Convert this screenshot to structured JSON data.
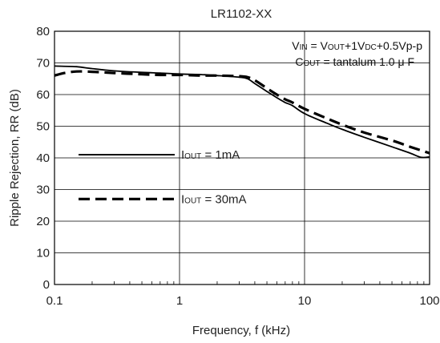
{
  "chart_data": {
    "type": "line",
    "title": "LR1102-XX",
    "xlabel": "Frequency, f (kHz)",
    "ylabel": "Ripple Rejection, RR (dB)",
    "xscale": "log",
    "xlim": [
      0.1,
      100
    ],
    "ylim": [
      0,
      80
    ],
    "xticks": [
      "0.1",
      "1",
      "10",
      "100"
    ],
    "yticks": [
      "0",
      "10",
      "20",
      "30",
      "40",
      "50",
      "60",
      "70",
      "80"
    ],
    "grid": true,
    "conditions": {
      "line1": {
        "a": "V",
        "a_sub": "IN",
        "b": " = V",
        "b_sub": "OUT",
        "c": "+1V",
        "c_sub": "DC",
        "d": "+0.5Vp-p"
      },
      "line2": {
        "a": "C",
        "a_sub": "OUT",
        "b": " = tantalum 1.0 μ F"
      }
    },
    "series": [
      {
        "name": "IOUT = 1mA",
        "label": {
          "a": "I",
          "a_sub": "OUT",
          "b": " = 1mA"
        },
        "style": "solid",
        "x": [
          0.1,
          0.15,
          0.2,
          0.3,
          0.5,
          0.7,
          1,
          1.5,
          2,
          3,
          3.5,
          4,
          5,
          6,
          7,
          8,
          10,
          15,
          20,
          30,
          50,
          70,
          85,
          100
        ],
        "y": [
          69,
          68.8,
          68.2,
          67.5,
          67,
          66.8,
          66.5,
          66.3,
          66,
          65.5,
          65,
          63.5,
          61,
          59,
          57.5,
          56.5,
          54,
          51,
          49,
          46.5,
          43.5,
          41.5,
          40.2,
          40.3
        ]
      },
      {
        "name": "IOUT = 30mA",
        "label": {
          "a": "I",
          "a_sub": "OUT",
          "b": " = 30mA"
        },
        "style": "dashed",
        "x": [
          0.1,
          0.12,
          0.15,
          0.2,
          0.3,
          0.5,
          0.7,
          1,
          1.5,
          2,
          3,
          3.5,
          4,
          5,
          6,
          7,
          8,
          10,
          15,
          20,
          30,
          50,
          70,
          100
        ],
        "y": [
          66,
          66.8,
          67.3,
          67.2,
          66.8,
          66.4,
          66.2,
          66.2,
          66,
          66,
          65.8,
          65.5,
          64.5,
          62,
          60,
          58.5,
          57.5,
          55.5,
          52.5,
          50.5,
          48,
          45.5,
          43.5,
          41.5
        ]
      }
    ]
  },
  "colors": {
    "axis": "#000000",
    "grid": "#000000",
    "line": "#000000",
    "text": "#222222"
  }
}
